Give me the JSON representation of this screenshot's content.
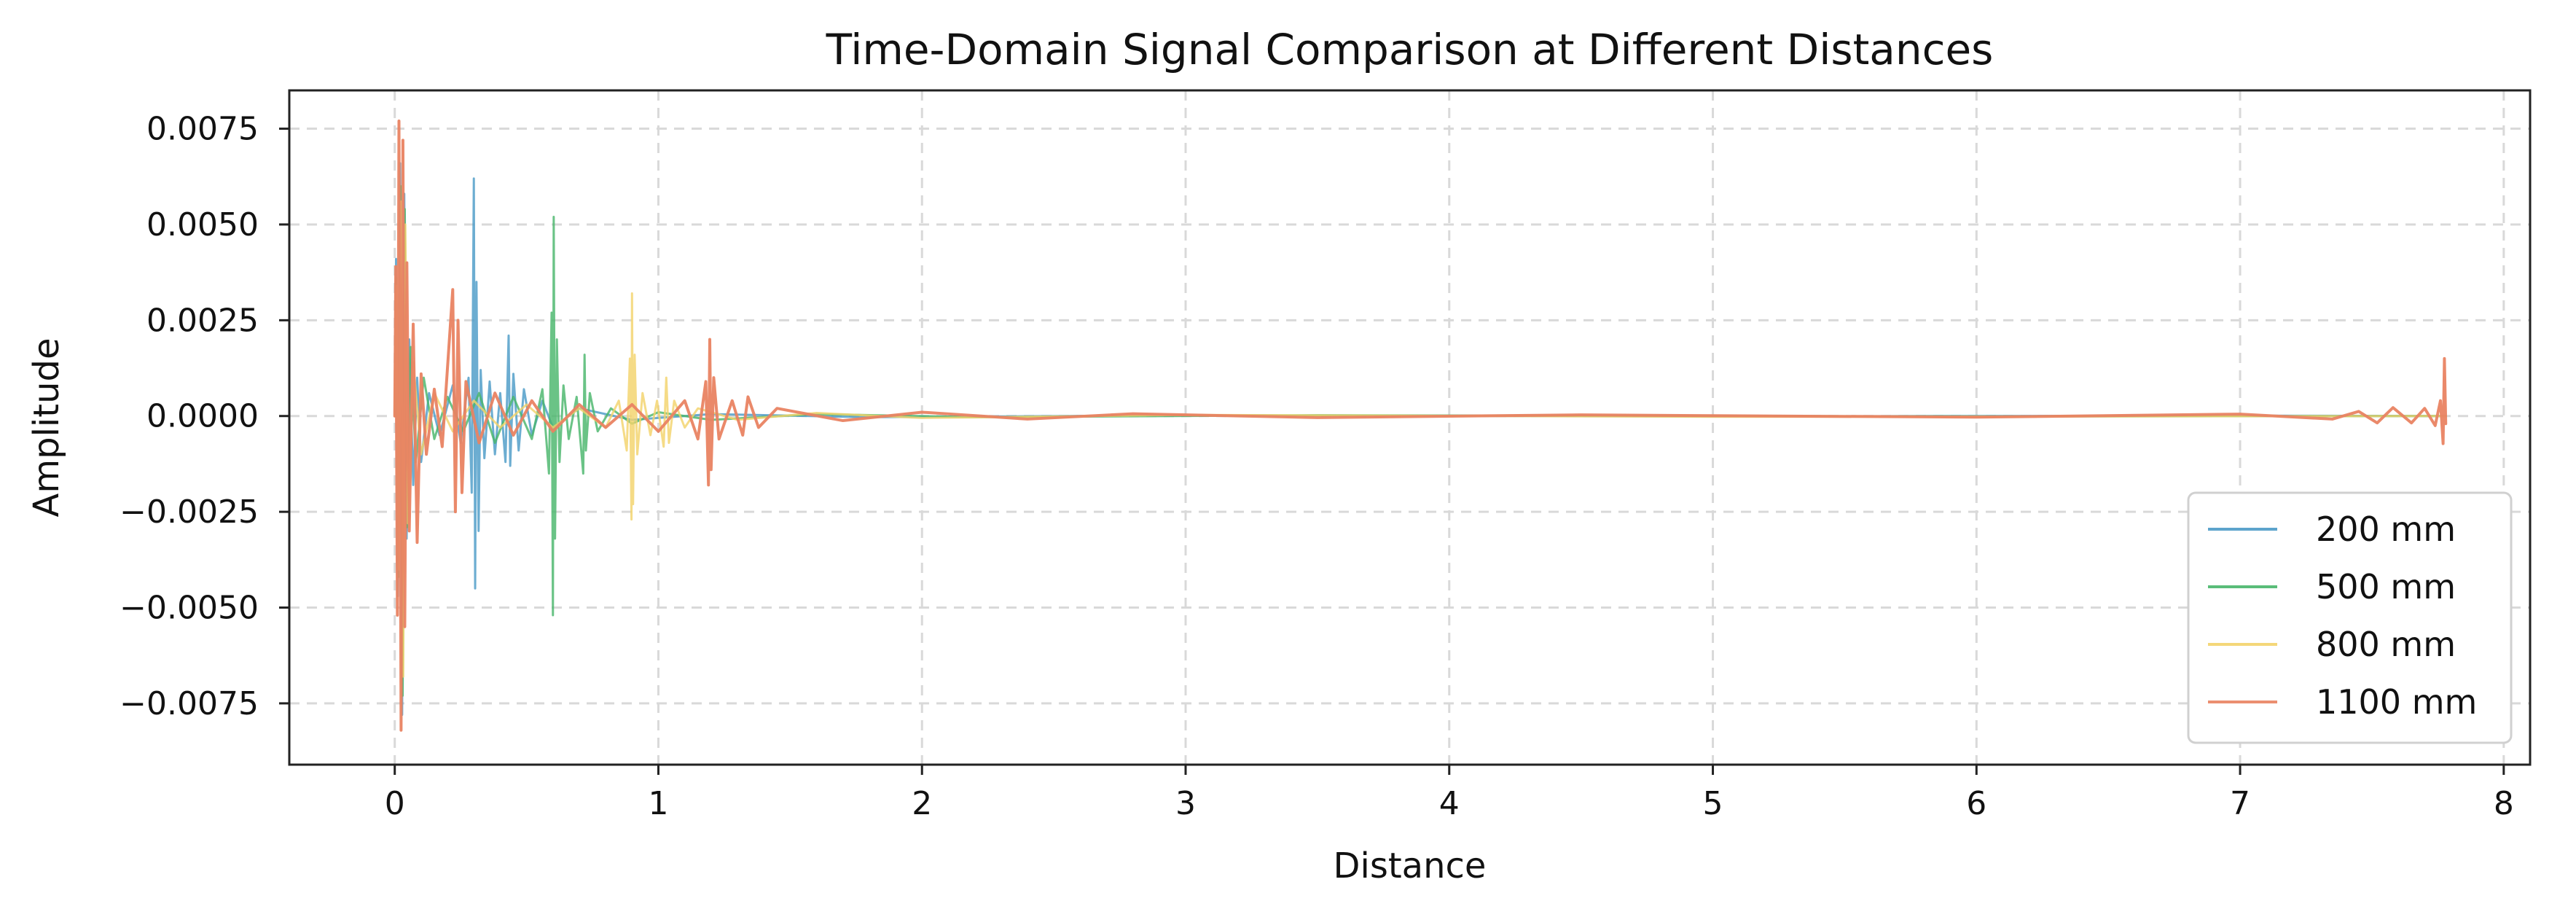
{
  "chart_data": {
    "type": "line",
    "title": "Time-Domain Signal Comparison at Different Distances",
    "xlabel": "Distance",
    "ylabel": "Amplitude",
    "xlim": [
      -0.4,
      8.1
    ],
    "ylim": [
      -0.0091,
      0.0085
    ],
    "x_ticks": [
      0,
      1,
      2,
      3,
      4,
      5,
      6,
      7,
      8
    ],
    "y_ticks": [
      0.0075,
      0.005,
      0.0025,
      0.0,
      -0.0025,
      -0.005,
      -0.0075
    ],
    "x_tick_labels": [
      "0",
      "1",
      "2",
      "3",
      "4",
      "5",
      "6",
      "7",
      "8"
    ],
    "y_tick_labels": [
      "0.0075",
      "0.0050",
      "0.0025",
      "0.0000",
      "−0.0025",
      "−0.0050",
      "−0.0075"
    ],
    "grid": true,
    "legend_position": "bottom-right",
    "series": [
      {
        "name": "200 mm",
        "color": "#4C9BC7",
        "points": [
          [
            0.0,
            0.0
          ],
          [
            0.005,
            0.0041
          ],
          [
            0.012,
            -0.0047
          ],
          [
            0.02,
            0.0066
          ],
          [
            0.028,
            -0.0078
          ],
          [
            0.036,
            0.0058
          ],
          [
            0.045,
            -0.0032
          ],
          [
            0.055,
            0.002
          ],
          [
            0.07,
            -0.0018
          ],
          [
            0.085,
            0.001
          ],
          [
            0.1,
            -0.0012
          ],
          [
            0.13,
            0.0006
          ],
          [
            0.17,
            -0.0005
          ],
          [
            0.22,
            0.0008
          ],
          [
            0.25,
            -0.0007
          ],
          [
            0.28,
            0.001
          ],
          [
            0.292,
            -0.002
          ],
          [
            0.3,
            0.0062
          ],
          [
            0.305,
            -0.0045
          ],
          [
            0.31,
            0.0035
          ],
          [
            0.318,
            -0.003
          ],
          [
            0.326,
            0.0012
          ],
          [
            0.34,
            -0.0011
          ],
          [
            0.36,
            0.0009
          ],
          [
            0.38,
            -0.001
          ],
          [
            0.4,
            0.0006
          ],
          [
            0.42,
            -0.0012
          ],
          [
            0.432,
            0.0021
          ],
          [
            0.438,
            -0.0013
          ],
          [
            0.45,
            0.0011
          ],
          [
            0.47,
            -0.0009
          ],
          [
            0.49,
            0.0007
          ],
          [
            0.52,
            -0.0005
          ],
          [
            0.56,
            0.0004
          ],
          [
            0.6,
            -0.0003
          ],
          [
            0.7,
            0.0002
          ],
          [
            0.9,
            -0.0001
          ],
          [
            1.2,
            5e-05
          ],
          [
            1.8,
            -3e-05
          ],
          [
            3.0,
            2e-05
          ],
          [
            5.0,
            -1e-05
          ],
          [
            7.0,
            1e-05
          ],
          [
            7.78,
            0.0
          ]
        ]
      },
      {
        "name": "500 mm",
        "color": "#49B66B",
        "points": [
          [
            0.0,
            0.0
          ],
          [
            0.006,
            0.0036
          ],
          [
            0.014,
            -0.0042
          ],
          [
            0.022,
            0.006
          ],
          [
            0.03,
            -0.0073
          ],
          [
            0.038,
            0.0054
          ],
          [
            0.047,
            -0.0029
          ],
          [
            0.06,
            0.0018
          ],
          [
            0.08,
            -0.0012
          ],
          [
            0.11,
            0.001
          ],
          [
            0.15,
            -0.0006
          ],
          [
            0.2,
            0.0005
          ],
          [
            0.26,
            -0.0004
          ],
          [
            0.32,
            0.0006
          ],
          [
            0.38,
            -0.0007
          ],
          [
            0.45,
            0.0005
          ],
          [
            0.52,
            -0.0006
          ],
          [
            0.56,
            0.0007
          ],
          [
            0.585,
            -0.0015
          ],
          [
            0.595,
            0.0027
          ],
          [
            0.6,
            -0.0052
          ],
          [
            0.603,
            0.0052
          ],
          [
            0.608,
            -0.0032
          ],
          [
            0.615,
            0.002
          ],
          [
            0.625,
            -0.0012
          ],
          [
            0.64,
            0.0008
          ],
          [
            0.66,
            -0.0006
          ],
          [
            0.69,
            0.0005
          ],
          [
            0.715,
            -0.0015
          ],
          [
            0.72,
            0.0016
          ],
          [
            0.725,
            -0.0009
          ],
          [
            0.74,
            0.0006
          ],
          [
            0.77,
            -0.0004
          ],
          [
            0.82,
            0.0002
          ],
          [
            0.9,
            -0.0002
          ],
          [
            1.0,
            0.0001
          ],
          [
            1.2,
            -0.0001
          ],
          [
            1.6,
            5e-05
          ],
          [
            2.2,
            -3e-05
          ],
          [
            3.5,
            2e-05
          ],
          [
            6.0,
            -1e-05
          ],
          [
            7.78,
            0.0
          ]
        ]
      },
      {
        "name": "800 mm",
        "color": "#F3D36B",
        "points": [
          [
            0.0,
            0.0
          ],
          [
            0.007,
            0.0034
          ],
          [
            0.015,
            -0.004
          ],
          [
            0.024,
            0.0056
          ],
          [
            0.032,
            -0.0068
          ],
          [
            0.04,
            0.005
          ],
          [
            0.05,
            -0.0028
          ],
          [
            0.07,
            0.0014
          ],
          [
            0.1,
            -0.001
          ],
          [
            0.15,
            0.0006
          ],
          [
            0.22,
            -0.0004
          ],
          [
            0.3,
            0.0004
          ],
          [
            0.4,
            -0.0003
          ],
          [
            0.5,
            0.0003
          ],
          [
            0.6,
            -0.0003
          ],
          [
            0.7,
            0.0002
          ],
          [
            0.8,
            -0.0003
          ],
          [
            0.85,
            0.0004
          ],
          [
            0.88,
            -0.0009
          ],
          [
            0.892,
            0.0015
          ],
          [
            0.898,
            -0.0027
          ],
          [
            0.9,
            0.0032
          ],
          [
            0.904,
            -0.0023
          ],
          [
            0.91,
            0.0016
          ],
          [
            0.92,
            -0.001
          ],
          [
            0.94,
            0.0006
          ],
          [
            0.97,
            -0.0005
          ],
          [
            0.995,
            0.0004
          ],
          [
            1.02,
            -0.0008
          ],
          [
            1.03,
            0.001
          ],
          [
            1.04,
            -0.0007
          ],
          [
            1.06,
            0.0004
          ],
          [
            1.1,
            -0.0003
          ],
          [
            1.15,
            0.0002
          ],
          [
            1.3,
            -0.0001
          ],
          [
            1.6,
            8e-05
          ],
          [
            2.0,
            -5e-05
          ],
          [
            3.0,
            3e-05
          ],
          [
            5.0,
            -2e-05
          ],
          [
            7.78,
            0.0
          ]
        ]
      },
      {
        "name": "1100 mm",
        "color": "#E98362",
        "points": [
          [
            0.0,
            0.0
          ],
          [
            0.004,
            0.0039
          ],
          [
            0.01,
            -0.0052
          ],
          [
            0.016,
            0.0077
          ],
          [
            0.024,
            -0.0082
          ],
          [
            0.031,
            0.0072
          ],
          [
            0.038,
            -0.0055
          ],
          [
            0.046,
            0.004
          ],
          [
            0.055,
            -0.003
          ],
          [
            0.07,
            0.0024
          ],
          [
            0.085,
            -0.0033
          ],
          [
            0.1,
            0.0011
          ],
          [
            0.12,
            -0.001
          ],
          [
            0.15,
            0.0007
          ],
          [
            0.18,
            -0.0008
          ],
          [
            0.22,
            0.0033
          ],
          [
            0.23,
            -0.0025
          ],
          [
            0.24,
            0.0025
          ],
          [
            0.255,
            -0.002
          ],
          [
            0.27,
            0.0009
          ],
          [
            0.32,
            -0.0007
          ],
          [
            0.38,
            0.0006
          ],
          [
            0.45,
            -0.0005
          ],
          [
            0.52,
            0.0004
          ],
          [
            0.6,
            -0.0004
          ],
          [
            0.7,
            0.0003
          ],
          [
            0.8,
            -0.0003
          ],
          [
            0.9,
            0.0003
          ],
          [
            1.0,
            -0.0004
          ],
          [
            1.1,
            0.0004
          ],
          [
            1.15,
            -0.0006
          ],
          [
            1.18,
            0.0009
          ],
          [
            1.19,
            -0.0018
          ],
          [
            1.195,
            0.002
          ],
          [
            1.2,
            -0.0014
          ],
          [
            1.21,
            0.001
          ],
          [
            1.23,
            -0.0006
          ],
          [
            1.28,
            0.0004
          ],
          [
            1.32,
            -0.0005
          ],
          [
            1.34,
            0.0005
          ],
          [
            1.38,
            -0.0003
          ],
          [
            1.45,
            0.0002
          ],
          [
            1.7,
            -0.00012
          ],
          [
            2.0,
            0.0001
          ],
          [
            2.4,
            -8e-05
          ],
          [
            2.8,
            6e-05
          ],
          [
            3.5,
            -4e-05
          ],
          [
            4.5,
            3e-05
          ],
          [
            6.0,
            -3e-05
          ],
          [
            7.0,
            5e-05
          ],
          [
            7.35,
            -8e-05
          ],
          [
            7.45,
            0.00012
          ],
          [
            7.52,
            -0.00018
          ],
          [
            7.58,
            0.00022
          ],
          [
            7.65,
            -0.00018
          ],
          [
            7.7,
            0.0002
          ],
          [
            7.74,
            -0.00025
          ],
          [
            7.76,
            0.0004
          ],
          [
            7.77,
            -0.00072
          ],
          [
            7.775,
            0.0015
          ],
          [
            7.78,
            -0.0002
          ]
        ]
      }
    ]
  }
}
